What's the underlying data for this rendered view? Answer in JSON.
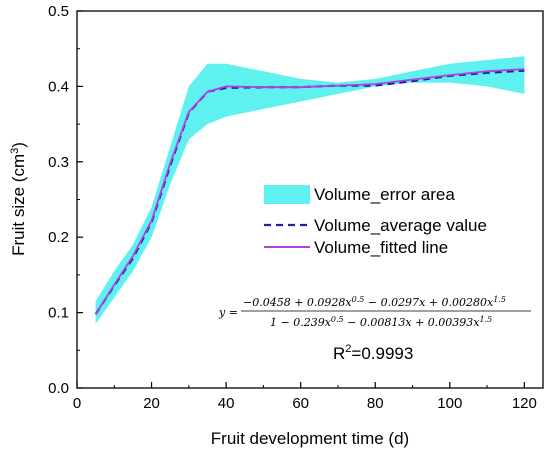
{
  "chart_data": {
    "type": "line",
    "xlabel": "Fruit development time (d)",
    "ylabel_main": "Fruit size (cm",
    "ylabel_sup": "3",
    "ylabel_end": ")",
    "xlim": [
      0,
      125
    ],
    "ylim": [
      0,
      0.5
    ],
    "xticks": [
      0,
      20,
      40,
      60,
      80,
      100,
      120
    ],
    "xtick_labels": [
      "0",
      "20",
      "40",
      "60",
      "80",
      "100",
      "120"
    ],
    "yticks": [
      0.0,
      0.1,
      0.2,
      0.3,
      0.4,
      0.5
    ],
    "ytick_labels": [
      "0.0",
      "0.1",
      "0.2",
      "0.3",
      "0.4",
      "0.5"
    ],
    "x": [
      5,
      10,
      15,
      20,
      25,
      30,
      35,
      40,
      50,
      60,
      70,
      80,
      90,
      100,
      110,
      120
    ],
    "series": [
      {
        "name": "Volume_error area",
        "kind": "band",
        "color": "#5ff0f0",
        "lower": [
          0.085,
          0.12,
          0.155,
          0.2,
          0.27,
          0.33,
          0.35,
          0.36,
          0.37,
          0.38,
          0.39,
          0.4,
          0.405,
          0.405,
          0.4,
          0.39
        ],
        "upper": [
          0.115,
          0.155,
          0.19,
          0.24,
          0.32,
          0.4,
          0.43,
          0.43,
          0.42,
          0.41,
          0.405,
          0.41,
          0.42,
          0.43,
          0.435,
          0.44
        ]
      },
      {
        "name": "Volume_average value",
        "kind": "line",
        "style": "dashed",
        "color": "#1f1fa0",
        "values": [
          0.098,
          0.136,
          0.172,
          0.22,
          0.295,
          0.365,
          0.393,
          0.398,
          0.399,
          0.399,
          0.401,
          0.401,
          0.407,
          0.414,
          0.418,
          0.421
        ]
      },
      {
        "name": "Volume_fitted line",
        "kind": "line",
        "style": "solid",
        "color": "#b040e0",
        "values": [
          0.098,
          0.137,
          0.175,
          0.222,
          0.298,
          0.366,
          0.393,
          0.4,
          0.399,
          0.399,
          0.401,
          0.403,
          0.409,
          0.415,
          0.42,
          0.423
        ]
      }
    ],
    "annotations": {
      "equation_lhs": "y =",
      "equation_numerator": "−0.0458 + 0.0928x0.5 − 0.0297x + 0.00280x1.5",
      "equation_denominator": "1 − 0.239x0.5 − 0.00813x + 0.00393x1.5",
      "r2_main": "R",
      "r2_sup": "2",
      "r2_value": "=0.9993"
    },
    "legend_position": "center-right",
    "grid": false
  }
}
